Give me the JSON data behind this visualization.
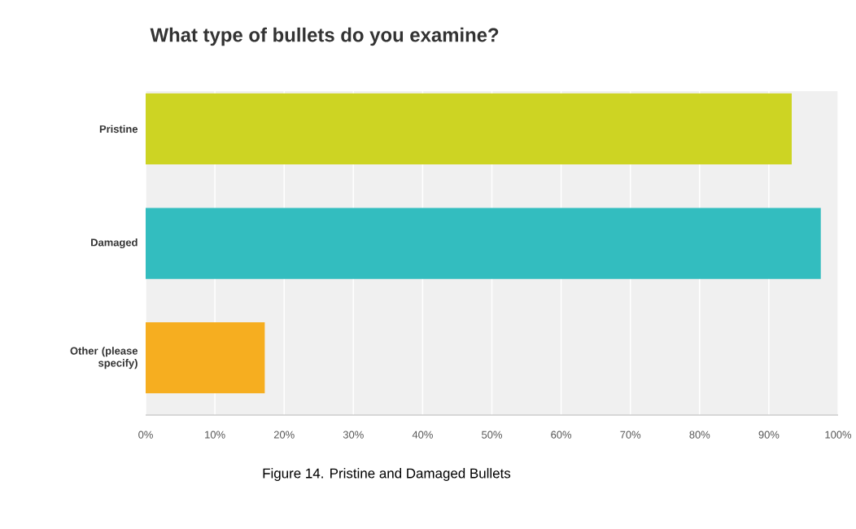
{
  "chart_data": {
    "type": "bar",
    "orientation": "horizontal",
    "title": "What type of bullets do you examine?",
    "categories": [
      "Pristine",
      "Damaged",
      "Other (please specify)"
    ],
    "values": [
      93.3,
      97.5,
      17.2
    ],
    "colors": [
      "#cdd423",
      "#33bdbf",
      "#f6ae20"
    ],
    "xlim": [
      0,
      100
    ],
    "xticks": [
      {
        "value": 0,
        "label": "0%"
      },
      {
        "value": 10,
        "label": "10%"
      },
      {
        "value": 20,
        "label": "20%"
      },
      {
        "value": 30,
        "label": "30%"
      },
      {
        "value": 40,
        "label": "40%"
      },
      {
        "value": 50,
        "label": "50%"
      },
      {
        "value": 60,
        "label": "60%"
      },
      {
        "value": 70,
        "label": "70%"
      },
      {
        "value": 80,
        "label": "80%"
      },
      {
        "value": 90,
        "label": "90%"
      },
      {
        "value": 100,
        "label": "100%"
      }
    ],
    "grid": "x",
    "annotations": [
      "Figure 14. Pristine and Damaged Bullets"
    ]
  }
}
